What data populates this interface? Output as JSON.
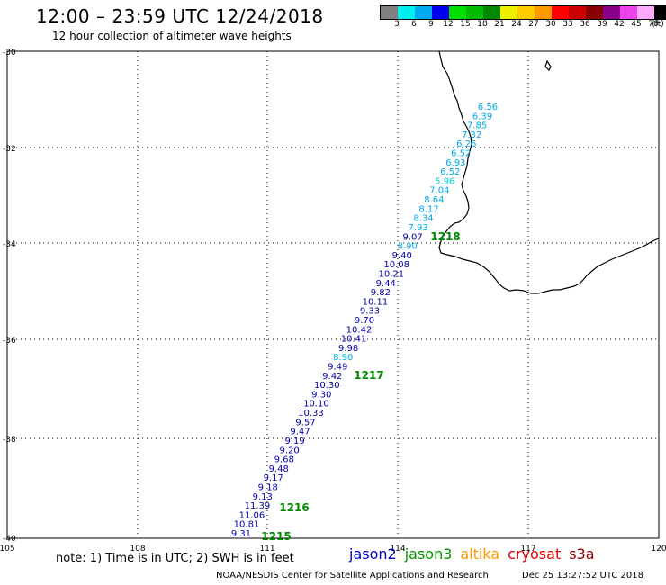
{
  "header": {
    "title": "12:00 – 23:59 UTC 12/24/2018",
    "subtitle": "12 hour collection of altimeter wave heights"
  },
  "legend": {
    "unit": "(ft)",
    "bins": [
      {
        "label": "3",
        "color": "#808080"
      },
      {
        "label": "6",
        "color": "#00eeee"
      },
      {
        "label": "9",
        "color": "#00aaee"
      },
      {
        "label": "12",
        "color": "#0000ee"
      },
      {
        "label": "15",
        "color": "#00dd00"
      },
      {
        "label": "18",
        "color": "#00bb00"
      },
      {
        "label": "21",
        "color": "#008800"
      },
      {
        "label": "24",
        "color": "#eeee00"
      },
      {
        "label": "27",
        "color": "#ffcc00"
      },
      {
        "label": "30",
        "color": "#ff9900"
      },
      {
        "label": "33",
        "color": "#ff0000"
      },
      {
        "label": "36",
        "color": "#cc0000"
      },
      {
        "label": "39",
        "color": "#880000"
      },
      {
        "label": "42",
        "color": "#880088"
      },
      {
        "label": "45",
        "color": "#ee44ee"
      },
      {
        "label": "70",
        "color": "#ffaaff"
      },
      {
        "label": "",
        "color": "#000000"
      }
    ]
  },
  "axes": {
    "lat_labels": [
      "-30",
      "-32",
      "-34",
      "-36",
      "-38",
      "-40"
    ],
    "lon_labels": [
      "105",
      "108",
      "111",
      "114",
      "117",
      "120"
    ]
  },
  "track": {
    "points": [
      {
        "v": "6.56",
        "c": "#00aaee"
      },
      {
        "v": "6.39",
        "c": "#00aaee"
      },
      {
        "v": "7.85",
        "c": "#00aaee"
      },
      {
        "v": "7.32",
        "c": "#00aaee"
      },
      {
        "v": "6.26",
        "c": "#00aaee"
      },
      {
        "v": "6.52",
        "c": "#00aaee"
      },
      {
        "v": "6.93",
        "c": "#00aaee"
      },
      {
        "v": "6.52",
        "c": "#00aaee"
      },
      {
        "v": "5.96",
        "c": "#00cccc"
      },
      {
        "v": "7.04",
        "c": "#00aaee"
      },
      {
        "v": "8.64",
        "c": "#00aaee"
      },
      {
        "v": "8.17",
        "c": "#00aaee"
      },
      {
        "v": "8.34",
        "c": "#00aaee"
      },
      {
        "v": "7.93",
        "c": "#00aaee"
      },
      {
        "v": "9.07",
        "c": "#0000aa"
      },
      {
        "v": "8.90",
        "c": "#00aaee"
      },
      {
        "v": "9.40",
        "c": "#0000aa"
      },
      {
        "v": "10.08",
        "c": "#0000aa"
      },
      {
        "v": "10.21",
        "c": "#0000aa"
      },
      {
        "v": "9.44",
        "c": "#0000aa"
      },
      {
        "v": "9.82",
        "c": "#0000aa"
      },
      {
        "v": "10.11",
        "c": "#0000aa"
      },
      {
        "v": "9.33",
        "c": "#0000aa"
      },
      {
        "v": "9.70",
        "c": "#0000aa"
      },
      {
        "v": "10.42",
        "c": "#0000aa"
      },
      {
        "v": "10.41",
        "c": "#0000aa"
      },
      {
        "v": "9.98",
        "c": "#0000aa"
      },
      {
        "v": "8.90",
        "c": "#00aaee"
      },
      {
        "v": "9.49",
        "c": "#0000aa"
      },
      {
        "v": "9.42",
        "c": "#0000aa"
      },
      {
        "v": "10.30",
        "c": "#0000aa"
      },
      {
        "v": "9.30",
        "c": "#0000aa"
      },
      {
        "v": "10.10",
        "c": "#0000aa"
      },
      {
        "v": "10.33",
        "c": "#0000aa"
      },
      {
        "v": "9.57",
        "c": "#0000aa"
      },
      {
        "v": "9.47",
        "c": "#0000aa"
      },
      {
        "v": "9.19",
        "c": "#0000aa"
      },
      {
        "v": "9.20",
        "c": "#0000aa"
      },
      {
        "v": "9.68",
        "c": "#0000aa"
      },
      {
        "v": "9.48",
        "c": "#0000aa"
      },
      {
        "v": "9.17",
        "c": "#0000aa"
      },
      {
        "v": "9.18",
        "c": "#0000aa"
      },
      {
        "v": "9.13",
        "c": "#0000aa"
      },
      {
        "v": "11.39",
        "c": "#0000aa"
      },
      {
        "v": "11.06",
        "c": "#0000aa"
      },
      {
        "v": "10.81",
        "c": "#0000aa"
      },
      {
        "v": "9.31",
        "c": "#0000aa"
      }
    ],
    "time_marks": [
      "1218",
      "1217",
      "1216",
      "1215"
    ]
  },
  "footer": {
    "note": "note:  1) Time is in UTC;  2) SWH is in feet",
    "satellites": [
      {
        "name": "jason2",
        "color": "#0000cc"
      },
      {
        "name": "jason3",
        "color": "#009900"
      },
      {
        "name": "altika",
        "color": "#ff9900"
      },
      {
        "name": "cryosat",
        "color": "#dd0000"
      },
      {
        "name": "s3a",
        "color": "#880000"
      }
    ],
    "credit": "NOAA/NESDIS Center for Satellite Applications and Research",
    "timestamp": "Dec 25 13:27:52 UTC 2018"
  }
}
